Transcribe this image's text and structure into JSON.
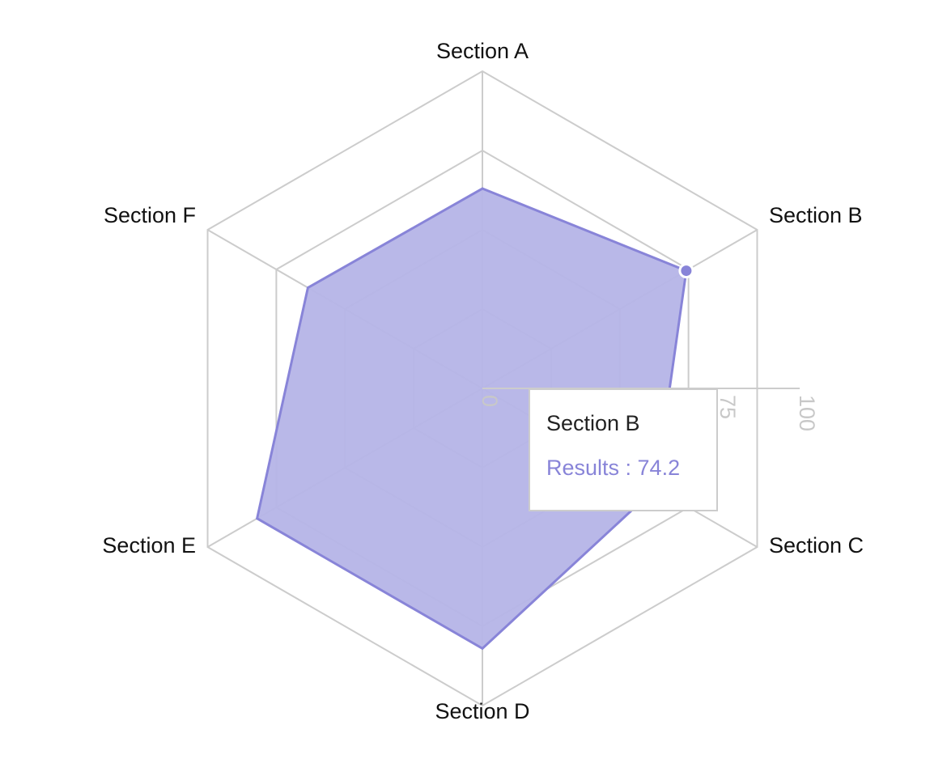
{
  "chart_data": {
    "type": "radar",
    "categories": [
      "Section A",
      "Section B",
      "Section C",
      "Section D",
      "Section E",
      "Section F"
    ],
    "series": [
      {
        "name": "Results",
        "values": [
          63,
          74.2,
          63,
          82,
          82,
          63.5
        ],
        "color": "#8884d8"
      }
    ],
    "radius_ticks": [
      "0",
      "25",
      "50",
      "75",
      "100"
    ],
    "rlim": [
      0,
      100
    ],
    "grid": true
  },
  "tooltip": {
    "title": "Section B",
    "series_name": "Results",
    "separator": " : ",
    "value": "74.2",
    "text": "Results : 74.2"
  },
  "colors": {
    "series": "#8884d8",
    "fill": "#b5b4e7",
    "grid": "#cccccc"
  }
}
